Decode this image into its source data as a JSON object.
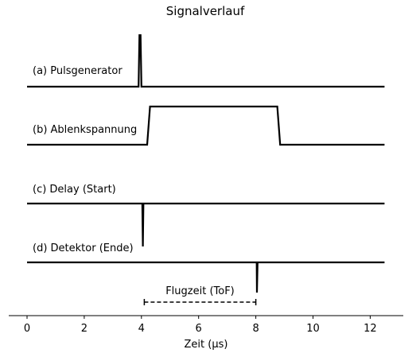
{
  "chart_data": {
    "type": "line",
    "title": "Signalverlauf",
    "xlabel": "Zeit (µs)",
    "ylabel": "",
    "xlim": [
      -0.6,
      13.0
    ],
    "x_ticks": [
      0,
      2,
      4,
      6,
      8,
      10,
      12
    ],
    "x_tick_labels": [
      "0",
      "2",
      "4",
      "6",
      "8",
      "10",
      "12"
    ],
    "grid": false,
    "series": [
      {
        "name": "(a) Pulsgenerator",
        "baseline": 0,
        "points": [
          [
            0,
            0
          ],
          [
            3.9,
            0
          ],
          [
            3.93,
            0.9
          ],
          [
            3.97,
            0.9
          ],
          [
            4.0,
            0
          ],
          [
            12.5,
            0
          ]
        ]
      },
      {
        "name": "(b) Ablenkspannung",
        "baseline": 0,
        "points": [
          [
            0,
            0
          ],
          [
            4.2,
            0
          ],
          [
            4.3,
            1
          ],
          [
            8.75,
            1
          ],
          [
            8.85,
            0
          ],
          [
            12.5,
            0
          ]
        ]
      },
      {
        "name": "(c) Delay (Start)",
        "baseline": 0,
        "points": [
          [
            0,
            0
          ],
          [
            4.03,
            0
          ],
          [
            4.05,
            -0.75
          ],
          [
            4.07,
            0
          ],
          [
            12.5,
            0
          ]
        ]
      },
      {
        "name": "(d) Detektor (Ende)",
        "baseline": 0,
        "points": [
          [
            0,
            0
          ],
          [
            8.03,
            0
          ],
          [
            8.04,
            -0.5
          ],
          [
            8.06,
            0
          ],
          [
            12.5,
            0
          ]
        ]
      }
    ],
    "annotation": {
      "text": "Flugzeit (ToF)",
      "x_start": 4.1,
      "x_end": 8.0
    }
  }
}
